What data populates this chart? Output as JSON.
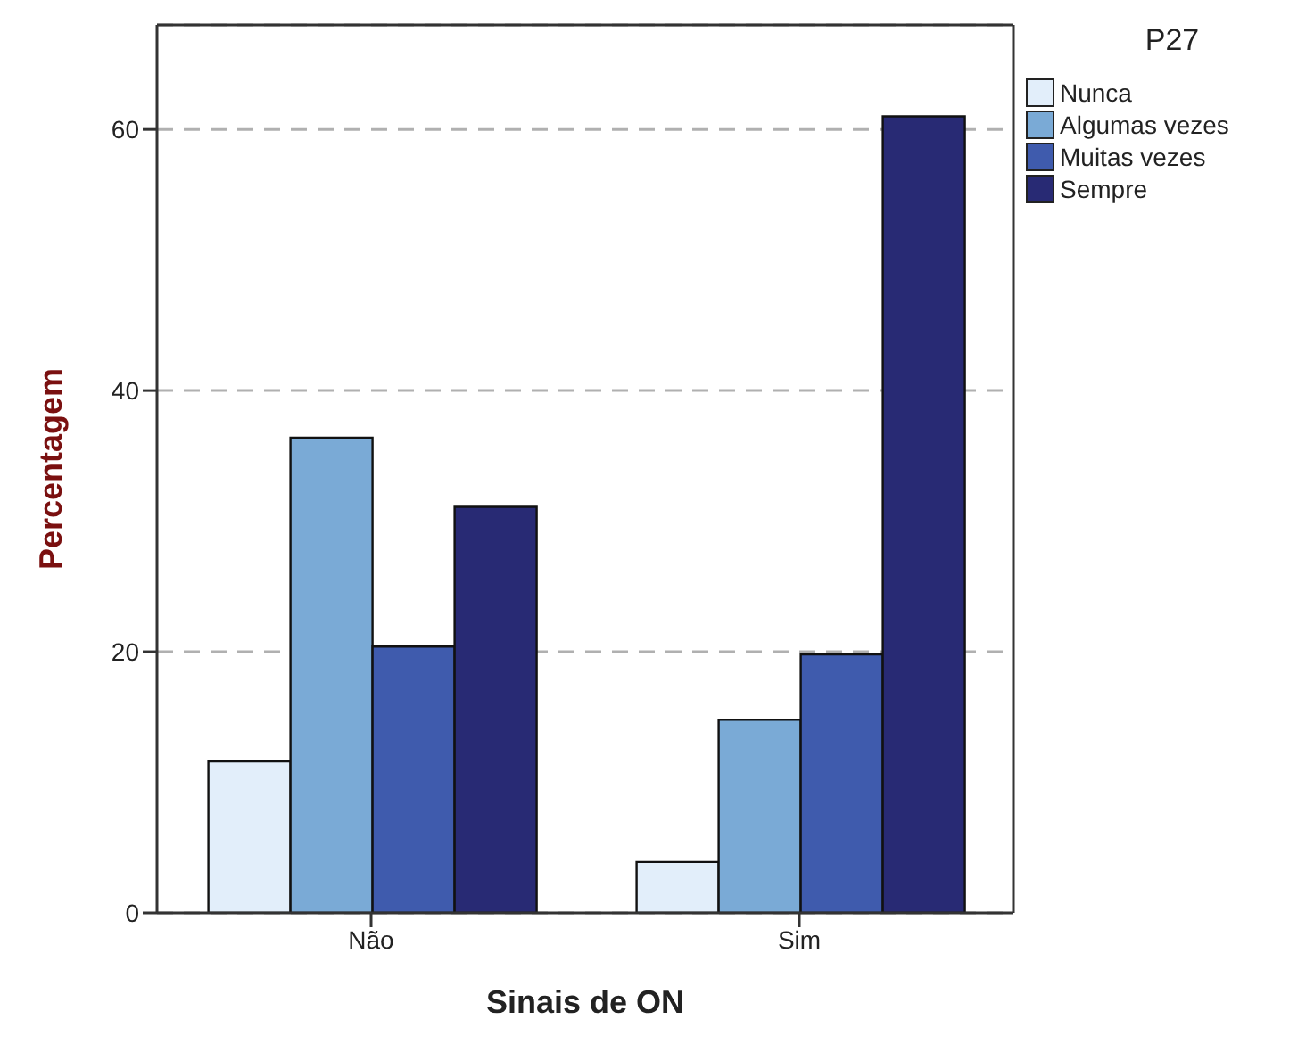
{
  "chart_data": {
    "type": "bar",
    "xlabel": "Sinais de ON",
    "ylabel": "Percentagem",
    "legend_title": "P27",
    "categories": [
      "Não",
      "Sim"
    ],
    "series": [
      {
        "name": "Nunca",
        "color": "#e2eefa",
        "values": [
          11.6,
          3.9
        ]
      },
      {
        "name": "Algumas vezes",
        "color": "#7aaad6",
        "values": [
          36.4,
          14.8
        ]
      },
      {
        "name": "Muitas vezes",
        "color": "#3f5bad",
        "values": [
          20.4,
          19.8
        ]
      },
      {
        "name": "Sempre",
        "color": "#282a74",
        "values": [
          31.1,
          61.0
        ]
      }
    ],
    "ylim": [
      0,
      68
    ],
    "yticks": [
      0,
      20,
      40,
      60
    ],
    "grid": "y",
    "legend": "top right"
  }
}
